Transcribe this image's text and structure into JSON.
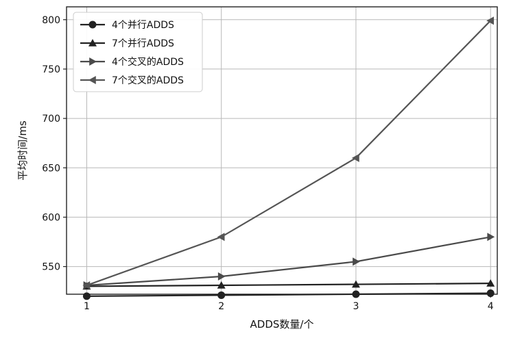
{
  "chart_data": {
    "type": "line",
    "title": "",
    "xlabel": "ADDS数量/个",
    "ylabel": "平均时间/ms",
    "x": [
      1,
      2,
      3,
      4
    ],
    "xlim": [
      0.85,
      4.05
    ],
    "ylim": [
      522,
      813
    ],
    "xticks": [
      1,
      2,
      3,
      4
    ],
    "yticks": [
      550,
      600,
      650,
      700,
      750,
      800
    ],
    "grid": true,
    "legend_position": "top-left",
    "series": [
      {
        "name": "4个并行ADDS",
        "values": [
          520,
          521,
          522,
          523
        ],
        "marker": "circle",
        "color": "#222222"
      },
      {
        "name": "7个并行ADDS",
        "values": [
          530,
          531,
          532,
          533
        ],
        "marker": "triangle-up",
        "color": "#222222"
      },
      {
        "name": "4个交叉的ADDS",
        "values": [
          531,
          540,
          555,
          580
        ],
        "marker": "triangle-right",
        "color": "#4a4a4a"
      },
      {
        "name": "7个交叉的ADDS",
        "values": [
          531,
          580,
          660,
          799
        ],
        "marker": "triangle-left",
        "color": "#555555"
      }
    ]
  }
}
